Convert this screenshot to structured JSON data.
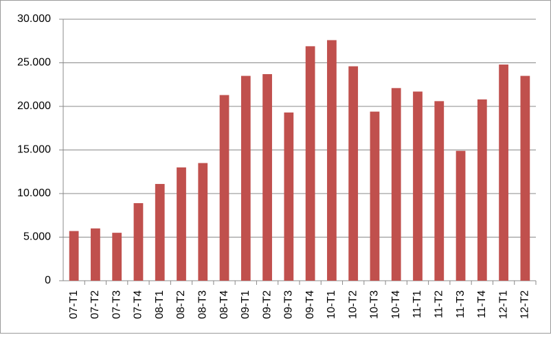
{
  "chart_data": {
    "type": "bar",
    "categories": [
      "07-T1",
      "07-T2",
      "07-T3",
      "07-T4",
      "08-T1",
      "08-T2",
      "08-T3",
      "08-T4",
      "09-T1",
      "09-T2",
      "09-T3",
      "09-T4",
      "10-T1",
      "10-T2",
      "10-T3",
      "10-T4",
      "11-T1",
      "11-T2",
      "11-T3",
      "11-T4",
      "12-T1",
      "12-T2"
    ],
    "values": [
      5700,
      6000,
      5500,
      8900,
      11100,
      13000,
      13500,
      21300,
      23500,
      23700,
      19300,
      26900,
      27600,
      24600,
      19400,
      22100,
      21700,
      20600,
      14900,
      20800,
      24800,
      23500
    ],
    "color": "#c0504d",
    "ylim": [
      0,
      30000
    ],
    "yticks": [
      0,
      {
        "value": 5000,
        "label": "5.000"
      },
      {
        "value": 10000,
        "label": "10.000"
      },
      {
        "value": 15000,
        "label": "15.000"
      },
      {
        "value": 20000,
        "label": "20.000"
      },
      {
        "value": 25000,
        "label": "25.000"
      },
      {
        "value": 30000,
        "label": "30.000"
      }
    ],
    "grid": true
  }
}
